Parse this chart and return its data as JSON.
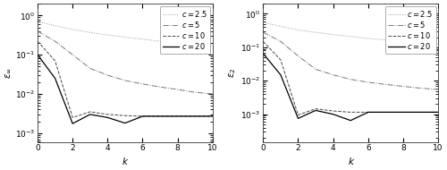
{
  "title": "",
  "xlabel": "k",
  "ylabel_left": "$\\varepsilon_\\infty$",
  "ylabel_right": "$\\varepsilon_2$",
  "legend_labels": [
    "$c=2.5$",
    "$c=5$",
    "$c=10$",
    "$c=20$"
  ],
  "line_styles": [
    "dotted",
    "dashdot",
    "dashed",
    "solid"
  ],
  "line_colors": [
    "#999999",
    "#777777",
    "#444444",
    "#000000"
  ],
  "x": [
    0,
    1,
    2,
    3,
    4,
    5,
    6,
    7,
    8,
    9,
    10
  ],
  "left_data": {
    "c2.5": [
      0.7,
      0.55,
      0.44,
      0.37,
      0.32,
      0.28,
      0.25,
      0.22,
      0.2,
      0.18,
      0.17
    ],
    "c5": [
      0.4,
      0.22,
      0.1,
      0.045,
      0.03,
      0.022,
      0.018,
      0.015,
      0.013,
      0.011,
      0.01
    ],
    "c10": [
      0.22,
      0.07,
      0.0025,
      0.0035,
      0.003,
      0.0028,
      0.0027,
      0.0027,
      0.0027,
      0.0027,
      0.0027
    ],
    "c20": [
      0.1,
      0.025,
      0.00175,
      0.003,
      0.0025,
      0.0018,
      0.0027,
      0.0027,
      0.0027,
      0.0027,
      0.0027
    ]
  },
  "right_data": {
    "c2.5": [
      0.55,
      0.42,
      0.33,
      0.28,
      0.24,
      0.21,
      0.185,
      0.165,
      0.15,
      0.135,
      0.125
    ],
    "c5": [
      0.28,
      0.15,
      0.055,
      0.022,
      0.015,
      0.011,
      0.009,
      0.0078,
      0.0068,
      0.006,
      0.0055
    ],
    "c10": [
      0.15,
      0.042,
      0.00095,
      0.00145,
      0.00125,
      0.00115,
      0.00115,
      0.00115,
      0.00115,
      0.00115,
      0.00115
    ],
    "c20": [
      0.065,
      0.015,
      0.00075,
      0.0013,
      0.001,
      0.00065,
      0.00115,
      0.00115,
      0.00115,
      0.00115,
      0.00115
    ]
  },
  "left_ylim": [
    0.0006,
    2.0
  ],
  "right_ylim": [
    0.00015,
    2.0
  ],
  "background_color": "#ffffff",
  "text_color": "#000000",
  "font_size": 6.5
}
